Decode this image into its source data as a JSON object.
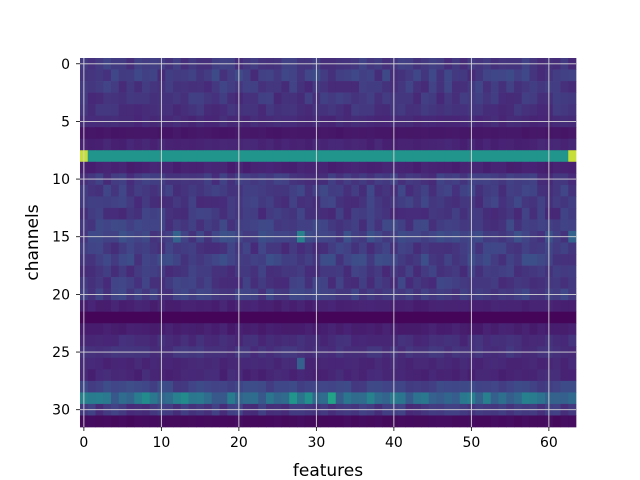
{
  "chart_data": {
    "type": "heatmap",
    "xlabel": "features",
    "ylabel": "channels",
    "n_cols": 64,
    "n_rows": 32,
    "xlim": [
      -0.5,
      63.5
    ],
    "ylim": [
      31.5,
      -0.5
    ],
    "x_ticks": [
      0,
      10,
      20,
      30,
      40,
      50,
      60
    ],
    "y_ticks": [
      0,
      5,
      10,
      15,
      20,
      25,
      30
    ],
    "grid": true,
    "colormap": "viridis",
    "row_base": [
      0.2,
      0.22,
      0.2,
      0.19,
      0.18,
      0.15,
      0.08,
      0.13,
      0.65,
      0.12,
      0.2,
      0.22,
      0.21,
      0.2,
      0.22,
      0.25,
      0.21,
      0.24,
      0.2,
      0.21,
      0.22,
      0.12,
      0.02,
      0.11,
      0.16,
      0.18,
      0.14,
      0.14,
      0.25,
      0.44,
      0.2,
      0.04
    ],
    "row_noise": [
      0.05,
      0.07,
      0.06,
      0.05,
      0.04,
      0.02,
      0.01,
      0.02,
      0.0,
      0.02,
      0.05,
      0.06,
      0.06,
      0.06,
      0.06,
      0.07,
      0.06,
      0.07,
      0.05,
      0.06,
      0.05,
      0.02,
      0.0,
      0.02,
      0.03,
      0.03,
      0.02,
      0.03,
      0.05,
      0.1,
      0.05,
      0.01
    ],
    "highlights": [
      {
        "row": 8,
        "col": 0,
        "value": 0.95
      },
      {
        "row": 8,
        "col": 63,
        "value": 0.95
      },
      {
        "row": 29,
        "col": 0,
        "value": 0.55
      },
      {
        "row": 29,
        "col": 8,
        "value": 0.6
      },
      {
        "row": 29,
        "col": 13,
        "value": 0.6
      },
      {
        "row": 29,
        "col": 27,
        "value": 0.65
      },
      {
        "row": 29,
        "col": 29,
        "value": 0.62
      },
      {
        "row": 29,
        "col": 32,
        "value": 0.72
      },
      {
        "row": 29,
        "col": 37,
        "value": 0.55
      },
      {
        "row": 29,
        "col": 44,
        "value": 0.5
      },
      {
        "row": 15,
        "col": 28,
        "value": 0.55
      },
      {
        "row": 15,
        "col": 12,
        "value": 0.4
      },
      {
        "row": 15,
        "col": 63,
        "value": 0.4
      },
      {
        "row": 26,
        "col": 28,
        "value": 0.38
      }
    ]
  }
}
